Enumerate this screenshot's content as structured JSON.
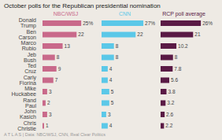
{
  "chart_data": {
    "type": "bar",
    "orientation": "horizontal",
    "title": "October polls for the Republican presidential nomination",
    "annotations": [
      "A T L A S  |  Data: NBC/WSJ, CNN, Real Clear Politics"
    ],
    "categories": [
      "Donald Trump",
      "Ben Carson",
      "Marco Rubio",
      "Jeb Bush",
      "Ted Cruz",
      "Carly Fiorina",
      "Mike Huckabee",
      "Rand Paul",
      "John Kasich",
      "Chris Christie"
    ],
    "series": [
      {
        "name": "NBC/WSJ",
        "color": "#c9698a",
        "values": [
          25,
          22,
          13,
          8,
          9,
          7,
          3,
          2,
          3,
          1
        ],
        "value_labels": [
          "25%",
          "22",
          "13",
          "8",
          "9",
          "7",
          "3",
          "2",
          "3",
          "1"
        ]
      },
      {
        "name": "CNN",
        "color": "#5bc8e8",
        "values": [
          27,
          22,
          8,
          8,
          4,
          4,
          5,
          5,
          3,
          4
        ],
        "value_labels": [
          "27%",
          "22",
          "8",
          "8",
          "4",
          "4",
          "5",
          "5",
          "3",
          "4"
        ]
      },
      {
        "name": "RCP poll average",
        "color": "#5a1a45",
        "values": [
          26,
          21,
          10.2,
          8,
          7.8,
          5.6,
          3.8,
          3.2,
          2.6,
          2.2
        ],
        "value_labels": [
          "26%",
          "21",
          "10.2",
          "8",
          "7.8",
          "5.6",
          "3.8",
          "3.2",
          "2.6",
          "2.2"
        ]
      }
    ],
    "xlim": [
      0,
      30
    ],
    "data_labels": true,
    "tick_labels": "y",
    "grid": false
  }
}
